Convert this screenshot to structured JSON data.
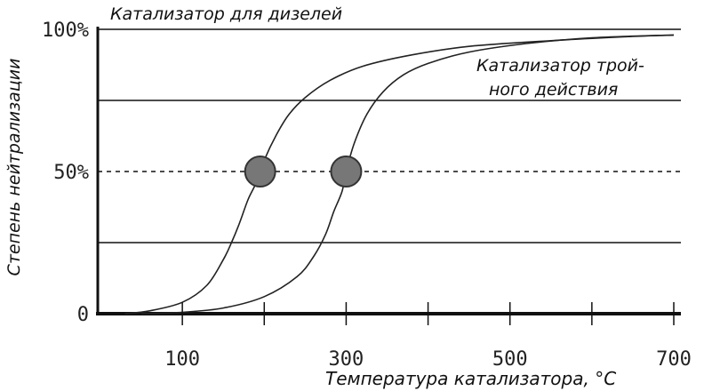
{
  "chart_data": {
    "type": "line",
    "xlabel": "Температура катализатора, °С",
    "ylabel": "Степень нейтрализации",
    "xlim": [
      0,
      700
    ],
    "ylim": [
      0,
      100
    ],
    "x_ticks": [
      100,
      300,
      500,
      700
    ],
    "x_minor_ticks": [
      200,
      400,
      600
    ],
    "y_ticks": [
      {
        "value": 0,
        "label": "0"
      },
      {
        "value": 50,
        "label": "50%"
      },
      {
        "value": 100,
        "label": "100%"
      }
    ],
    "gridlines_y": [
      25,
      50,
      75,
      100
    ],
    "dashed_gridline_y": 50,
    "series": [
      {
        "name": "Катализатор для дизелей",
        "color": "#222222",
        "x": [
          30,
          60,
          100,
          130,
          150,
          160,
          170,
          180,
          190,
          200,
          215,
          230,
          250,
          280,
          320,
          380,
          450,
          550,
          650,
          700
        ],
        "y": [
          0,
          1,
          4,
          10,
          19,
          25,
          32,
          40,
          46,
          54,
          63,
          70,
          76,
          82,
          87,
          91,
          94,
          96,
          97.5,
          98
        ]
      },
      {
        "name": "Катализатор тройного действия",
        "color": "#222222",
        "x": [
          50,
          100,
          150,
          200,
          240,
          260,
          275,
          285,
          295,
          300,
          310,
          325,
          345,
          370,
          400,
          450,
          520,
          600,
          700
        ],
        "y": [
          0,
          0.5,
          2,
          6,
          13,
          20,
          28,
          36,
          43,
          50,
          60,
          70,
          78,
          84,
          88,
          92,
          95,
          97,
          98
        ]
      }
    ],
    "markers": [
      {
        "x": 195,
        "y": 50,
        "color": "#777777"
      },
      {
        "x": 300,
        "y": 50,
        "color": "#777777"
      }
    ],
    "annotations": [
      {
        "series": "Катализатор для дизелей",
        "text": "Катализатор для дизелей"
      },
      {
        "series": "Катализатор тройного действия",
        "lines": [
          "Катализатор трой-",
          "ного действия"
        ]
      }
    ]
  }
}
